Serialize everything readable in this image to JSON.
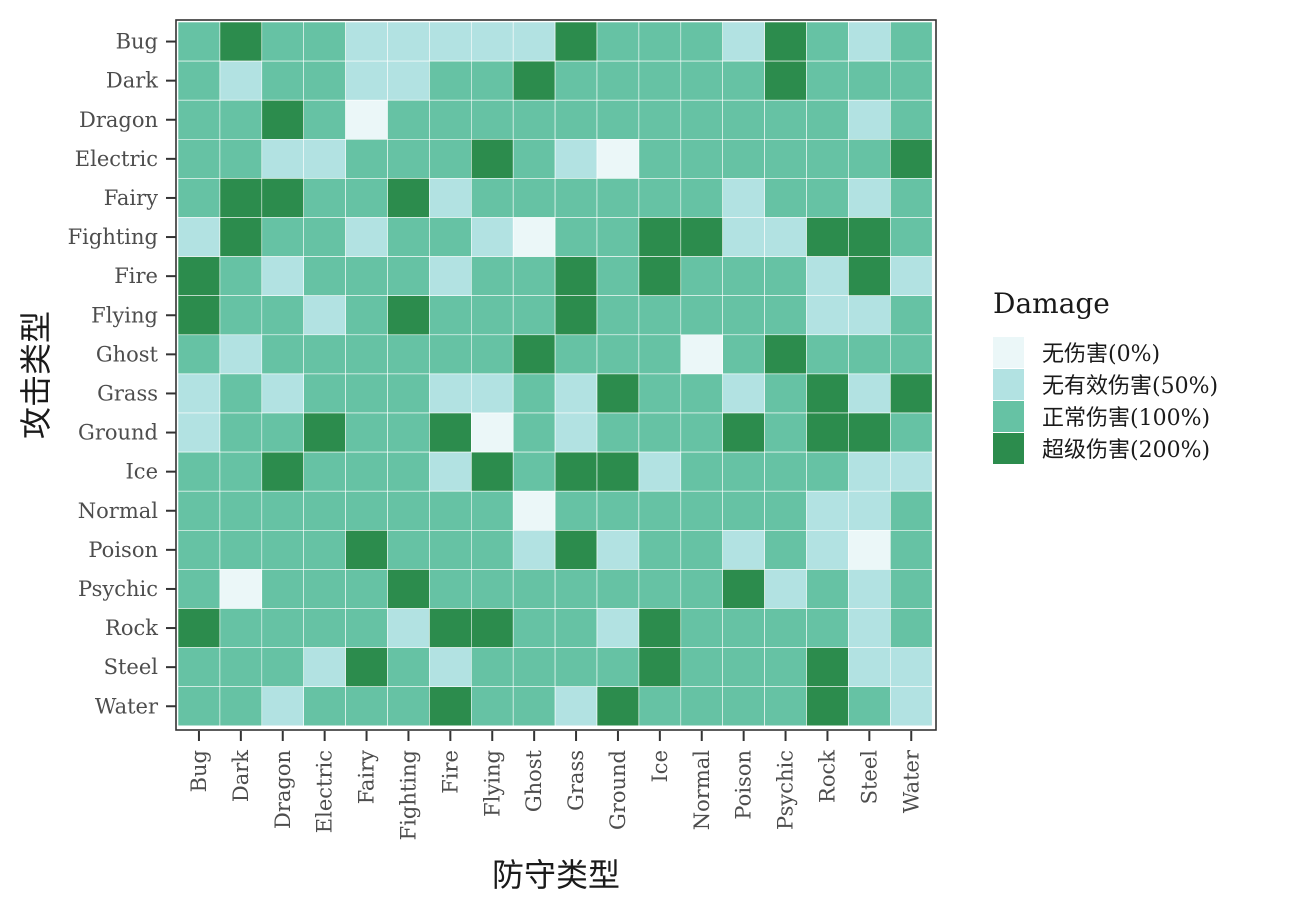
{
  "chart_data": {
    "type": "heatmap",
    "xlabel": "防守类型",
    "ylabel": "攻击类型",
    "x": [
      "Bug",
      "Dark",
      "Dragon",
      "Electric",
      "Fairy",
      "Fighting",
      "Fire",
      "Flying",
      "Ghost",
      "Grass",
      "Ground",
      "Ice",
      "Normal",
      "Poison",
      "Psychic",
      "Rock",
      "Steel",
      "Water"
    ],
    "y": [
      "Bug",
      "Dark",
      "Dragon",
      "Electric",
      "Fairy",
      "Fighting",
      "Fire",
      "Flying",
      "Ghost",
      "Grass",
      "Ground",
      "Ice",
      "Normal",
      "Poison",
      "Psychic",
      "Rock",
      "Steel",
      "Water"
    ],
    "values": [
      [
        100,
        200,
        100,
        100,
        50,
        50,
        50,
        50,
        50,
        200,
        100,
        100,
        100,
        50,
        200,
        100,
        50,
        100
      ],
      [
        100,
        50,
        100,
        100,
        50,
        50,
        100,
        100,
        200,
        100,
        100,
        100,
        100,
        100,
        200,
        100,
        100,
        100
      ],
      [
        100,
        100,
        200,
        100,
        0,
        100,
        100,
        100,
        100,
        100,
        100,
        100,
        100,
        100,
        100,
        100,
        50,
        100
      ],
      [
        100,
        100,
        50,
        50,
        100,
        100,
        100,
        200,
        100,
        50,
        0,
        100,
        100,
        100,
        100,
        100,
        100,
        200
      ],
      [
        100,
        200,
        200,
        100,
        100,
        200,
        50,
        100,
        100,
        100,
        100,
        100,
        100,
        50,
        100,
        100,
        50,
        100
      ],
      [
        50,
        200,
        100,
        100,
        50,
        100,
        100,
        50,
        0,
        100,
        100,
        200,
        200,
        50,
        50,
        200,
        200,
        100
      ],
      [
        200,
        100,
        50,
        100,
        100,
        100,
        50,
        100,
        100,
        200,
        100,
        200,
        100,
        100,
        100,
        50,
        200,
        50
      ],
      [
        200,
        100,
        100,
        50,
        100,
        200,
        100,
        100,
        100,
        200,
        100,
        100,
        100,
        100,
        100,
        50,
        50,
        100
      ],
      [
        100,
        50,
        100,
        100,
        100,
        100,
        100,
        100,
        200,
        100,
        100,
        100,
        0,
        100,
        200,
        100,
        100,
        100
      ],
      [
        50,
        100,
        50,
        100,
        100,
        100,
        50,
        50,
        100,
        50,
        200,
        100,
        100,
        50,
        100,
        200,
        50,
        200
      ],
      [
        50,
        100,
        100,
        200,
        100,
        100,
        200,
        0,
        100,
        50,
        100,
        100,
        100,
        200,
        100,
        200,
        200,
        100
      ],
      [
        100,
        100,
        200,
        100,
        100,
        100,
        50,
        200,
        100,
        200,
        200,
        50,
        100,
        100,
        100,
        100,
        50,
        50
      ],
      [
        100,
        100,
        100,
        100,
        100,
        100,
        100,
        100,
        0,
        100,
        100,
        100,
        100,
        100,
        100,
        50,
        50,
        100
      ],
      [
        100,
        100,
        100,
        100,
        200,
        100,
        100,
        100,
        50,
        200,
        50,
        100,
        100,
        50,
        100,
        50,
        0,
        100
      ],
      [
        100,
        0,
        100,
        100,
        100,
        200,
        100,
        100,
        100,
        100,
        100,
        100,
        100,
        200,
        50,
        100,
        50,
        100
      ],
      [
        200,
        100,
        100,
        100,
        100,
        50,
        200,
        200,
        100,
        100,
        50,
        200,
        100,
        100,
        100,
        100,
        50,
        100
      ],
      [
        100,
        100,
        100,
        50,
        200,
        100,
        50,
        100,
        100,
        100,
        100,
        200,
        100,
        100,
        100,
        200,
        50,
        50
      ],
      [
        100,
        100,
        50,
        100,
        100,
        100,
        200,
        100,
        100,
        50,
        200,
        100,
        100,
        100,
        100,
        200,
        100,
        50
      ]
    ],
    "legend": {
      "title": "Damage",
      "placement": "right",
      "items": [
        {
          "label": "无伤害(0%)",
          "value": 0,
          "color": "#ebf7f8"
        },
        {
          "label": "无有效伤害(50%)",
          "value": 50,
          "color": "#b2e2e2"
        },
        {
          "label": "正常伤害(100%)",
          "value": 100,
          "color": "#66c2a4"
        },
        {
          "label": "超级伤害(200%)",
          "value": 200,
          "color": "#2c8c4d"
        }
      ]
    },
    "grid": false
  }
}
